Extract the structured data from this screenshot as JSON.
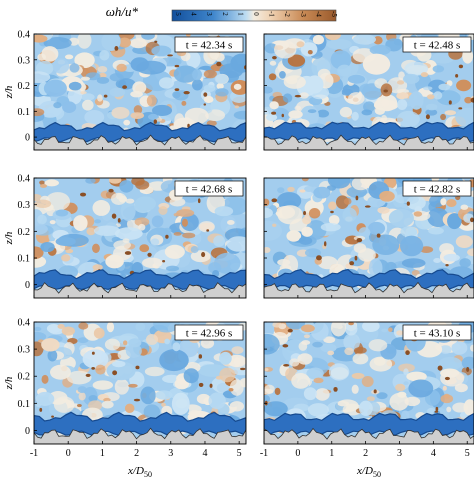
{
  "colorbar": {
    "label": "ωh/u*",
    "ticks": [
      "5",
      "4",
      "3",
      "2",
      "1",
      "0",
      "-1",
      "-2",
      "-3",
      "-4",
      "-5"
    ],
    "range": [
      5,
      -5
    ],
    "colors": {
      "high": "#1f5fb4",
      "mid": "#f3ece0",
      "low": "#9a5a2c"
    }
  },
  "chart_data": [
    {
      "type": "heatmap",
      "annotation": "t = 42.34 s",
      "xlabel": "",
      "ylabel": "z/h",
      "xlim": [
        -1,
        5.2
      ],
      "ylim": [
        -0.05,
        0.4
      ],
      "xticks": [],
      "yticks": [
        "0",
        "0.1",
        "0.2",
        "0.3",
        "0.4"
      ],
      "bed_thick_band_z": 0.04,
      "seed": 11
    },
    {
      "type": "heatmap",
      "annotation": "t = 42.48 s",
      "xlabel": "",
      "ylabel": "",
      "xlim": [
        -1,
        5.2
      ],
      "ylim": [
        -0.05,
        0.4
      ],
      "xticks": [],
      "yticks": [],
      "bed_thick_band_z": 0.045,
      "seed": 23
    },
    {
      "type": "heatmap",
      "annotation": "t = 42.68 s",
      "xlabel": "",
      "ylabel": "z/h",
      "xlim": [
        -1,
        5.2
      ],
      "ylim": [
        -0.05,
        0.4
      ],
      "xticks": [],
      "yticks": [
        "0",
        "0.1",
        "0.2",
        "0.3",
        "0.4"
      ],
      "bed_thick_band_z": 0.04,
      "seed": 37
    },
    {
      "type": "heatmap",
      "annotation": "t = 42.82 s",
      "xlabel": "",
      "ylabel": "",
      "xlim": [
        -1,
        5.2
      ],
      "ylim": [
        -0.05,
        0.4
      ],
      "xticks": [],
      "yticks": [],
      "bed_thick_band_z": 0.04,
      "seed": 41
    },
    {
      "type": "heatmap",
      "annotation": "t = 42.96 s",
      "xlabel": "x/D50",
      "ylabel": "z/h",
      "xlim": [
        -1,
        5.2
      ],
      "ylim": [
        -0.05,
        0.4
      ],
      "xticks": [
        "-1",
        "0",
        "1",
        "2",
        "3",
        "4",
        "5"
      ],
      "yticks": [
        "0",
        "0.1",
        "0.2",
        "0.3",
        "0.4"
      ],
      "bed_thick_band_z": 0.05,
      "seed": 53
    },
    {
      "type": "heatmap",
      "annotation": "t = 43.10 s",
      "xlabel": "x/D50",
      "ylabel": "",
      "xlim": [
        -1,
        5.2
      ],
      "ylim": [
        -0.05,
        0.4
      ],
      "xticks": [
        "-1",
        "0",
        "1",
        "2",
        "3",
        "4",
        "5"
      ],
      "yticks": [],
      "bed_thick_band_z": 0.05,
      "seed": 67
    }
  ]
}
